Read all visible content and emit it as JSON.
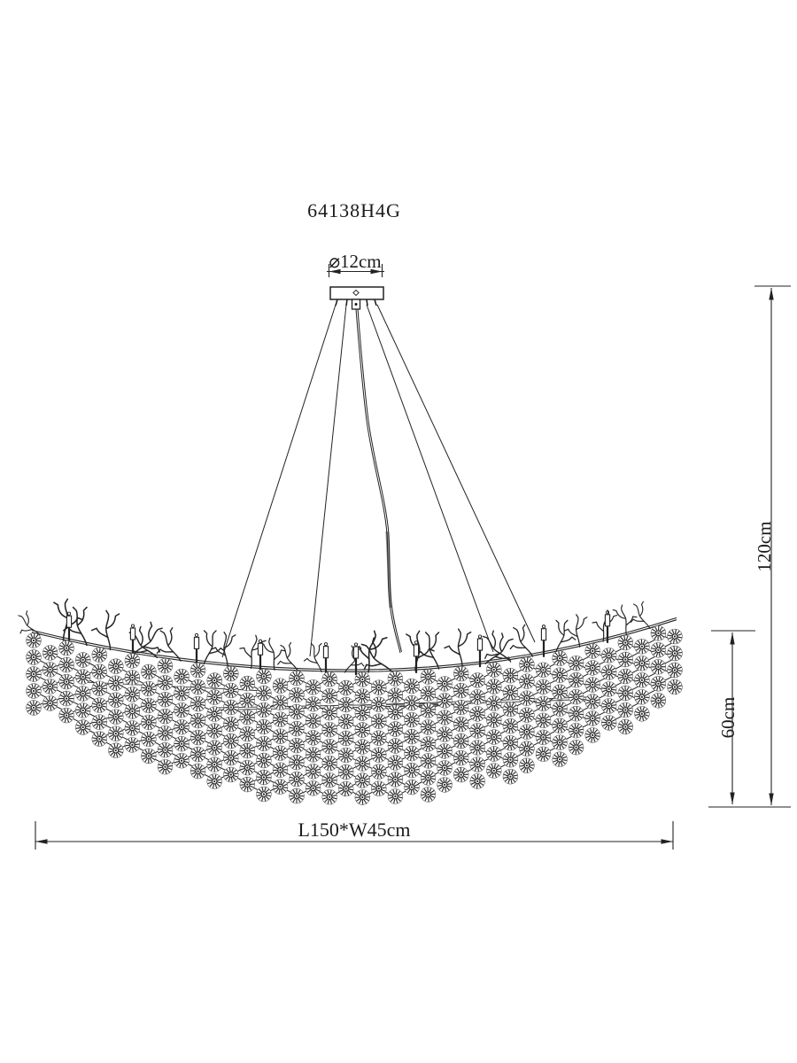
{
  "drawing": {
    "model_number": "64138H4G",
    "labels": {
      "canopy_diameter": "⌀12cm",
      "overall_height": "120cm",
      "body_height": "60cm",
      "footprint": "L150*W45cm"
    },
    "colors": {
      "ink": "#222222",
      "background": "#ffffff"
    }
  }
}
